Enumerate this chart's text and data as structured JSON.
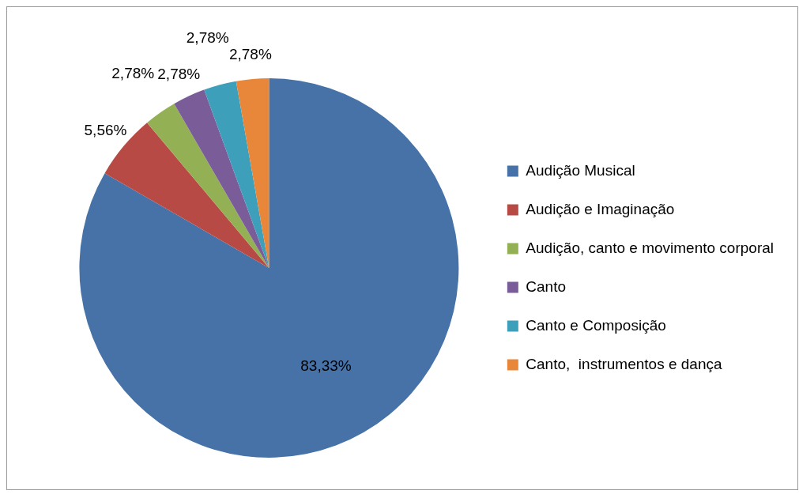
{
  "chart_data": {
    "type": "pie",
    "categories": [
      "Audição Musical",
      "Audição e Imaginação",
      "Audição, canto e movimento corporal",
      "Canto",
      "Canto e Composição",
      "Canto,  instrumentos e dança"
    ],
    "values": [
      83.33,
      5.56,
      2.78,
      2.78,
      2.78,
      2.78
    ],
    "colors": [
      "#4672a8",
      "#b84a45",
      "#93b055",
      "#7a5c98",
      "#3e9fba",
      "#e8873a"
    ],
    "value_labels": [
      "83,33%",
      "5,56%",
      "2,78%",
      "2,78%",
      "2,78%",
      "2,78%"
    ],
    "legend": "right"
  }
}
